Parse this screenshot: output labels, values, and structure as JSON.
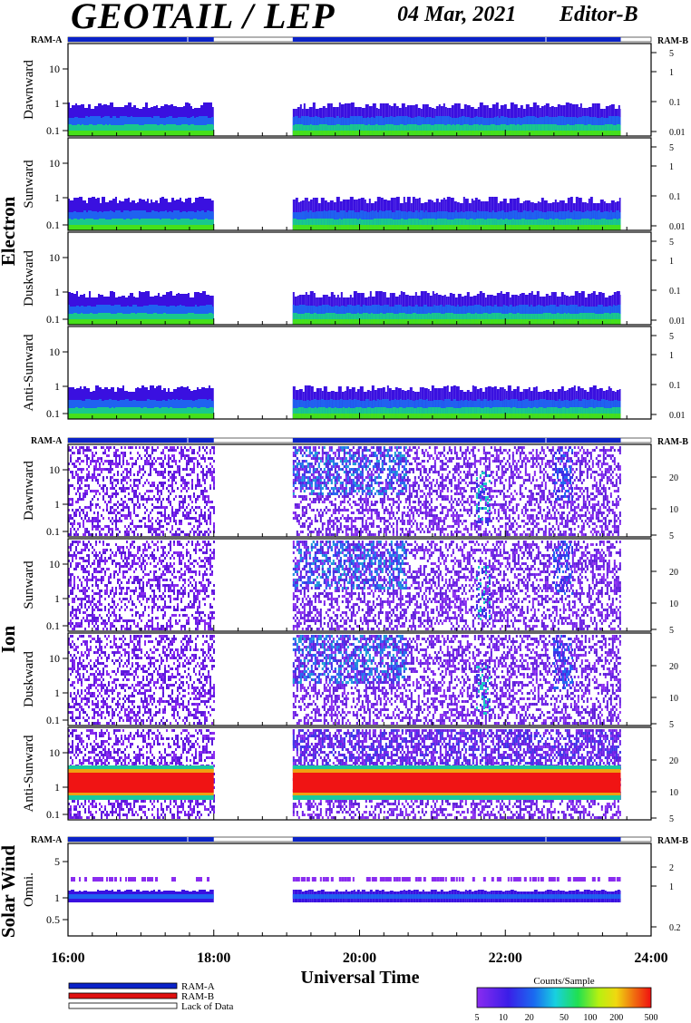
{
  "header": {
    "title": "GEOTAIL / LEP",
    "date": "04 Mar, 2021",
    "editor": "Editor-B"
  },
  "chart_data": {
    "type": "heatmap",
    "x_axis": {
      "label": "Universal Time",
      "range": [
        "16:00",
        "24:00"
      ],
      "ticks": [
        "16:00",
        "18:00",
        "20:00",
        "22:00",
        "24:00"
      ]
    },
    "data_gaps": [
      [
        "18:00",
        "19:05"
      ],
      [
        "23:35",
        "24:00"
      ]
    ],
    "ram_bar": {
      "left_label": "RAM-A",
      "right_label": "RAM-B"
    },
    "groups": [
      {
        "name": "Electron",
        "panels": [
          {
            "name": "Dawnward",
            "left_ticks": [
              "10",
              "1",
              "0.1"
            ],
            "right_ticks": [
              "5",
              "1",
              "0.1",
              "0.01"
            ]
          },
          {
            "name": "Sunward",
            "left_ticks": [
              "10",
              "1",
              "0.1"
            ],
            "right_ticks": [
              "5",
              "1",
              "0.1",
              "0.01"
            ]
          },
          {
            "name": "Duskward",
            "left_ticks": [
              "10",
              "1",
              "0.1"
            ],
            "right_ticks": [
              "5",
              "1",
              "0.1",
              "0.01"
            ]
          },
          {
            "name": "Anti-Sunward",
            "left_ticks": [
              "10",
              "1",
              "0.1"
            ],
            "right_ticks": [
              "5",
              "1",
              "0.1",
              "0.01"
            ]
          }
        ]
      },
      {
        "name": "Ion",
        "panels": [
          {
            "name": "Dawnward",
            "left_ticks": [
              "10",
              "1",
              "0.1"
            ],
            "right_ticks": [
              "20",
              "10",
              "5"
            ]
          },
          {
            "name": "Sunward",
            "left_ticks": [
              "10",
              "1",
              "0.1"
            ],
            "right_ticks": [
              "20",
              "10",
              "5"
            ]
          },
          {
            "name": "Duskward",
            "left_ticks": [
              "10",
              "1",
              "0.1"
            ],
            "right_ticks": [
              "20",
              "10",
              "5"
            ]
          },
          {
            "name": "Anti-Sunward",
            "left_ticks": [
              "10",
              "1",
              "0.1"
            ],
            "right_ticks": [
              "20",
              "10",
              "5"
            ]
          }
        ]
      },
      {
        "name": "Solar Wind",
        "panels": [
          {
            "name": "Omni.",
            "left_ticks": [
              "5",
              "1",
              "0.5"
            ],
            "right_ticks": [
              "2",
              "1",
              "0.2"
            ]
          }
        ]
      }
    ],
    "legend": [
      {
        "label": "RAM-A",
        "color": "#0a22c8"
      },
      {
        "label": "RAM-B",
        "color": "#e01010"
      },
      {
        "label": "Lack of Data",
        "color": "#ffffff"
      }
    ],
    "colorbar": {
      "title": "Counts/Sample",
      "ticks": [
        "5",
        "10",
        "20",
        "50",
        "100",
        "200",
        "500"
      ]
    }
  }
}
